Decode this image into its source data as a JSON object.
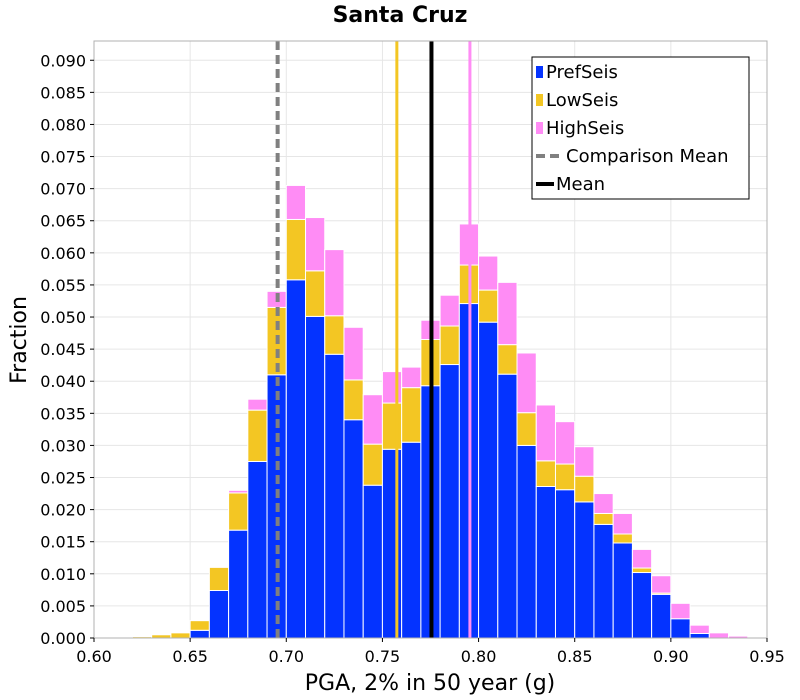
{
  "chart_data": {
    "type": "bar",
    "title": "Santa Cruz",
    "xlabel": "PGA, 2% in 50 year (g)",
    "ylabel": "Fraction",
    "xlim": [
      0.6,
      0.95
    ],
    "ylim": [
      0.0,
      0.093
    ],
    "xticks": [
      "0.60",
      "0.65",
      "0.70",
      "0.75",
      "0.80",
      "0.85",
      "0.90",
      "0.95"
    ],
    "xtick_values": [
      0.6,
      0.65,
      0.7,
      0.75,
      0.8,
      0.85,
      0.9,
      0.95
    ],
    "yticks": [
      "0.000",
      "0.005",
      "0.010",
      "0.015",
      "0.020",
      "0.025",
      "0.030",
      "0.035",
      "0.040",
      "0.045",
      "0.050",
      "0.055",
      "0.060",
      "0.065",
      "0.070",
      "0.075",
      "0.080",
      "0.085",
      "0.090"
    ],
    "ytick_values": [
      0.0,
      0.005,
      0.01,
      0.015,
      0.02,
      0.025,
      0.03,
      0.035,
      0.04,
      0.045,
      0.05,
      0.055,
      0.06,
      0.065,
      0.07,
      0.075,
      0.08,
      0.085,
      0.09
    ],
    "stacked": true,
    "bin_width": 0.01,
    "bin_starts": [
      0.6,
      0.61,
      0.62,
      0.63,
      0.64,
      0.65,
      0.66,
      0.67,
      0.68,
      0.69,
      0.7,
      0.71,
      0.72,
      0.73,
      0.74,
      0.75,
      0.76,
      0.77,
      0.78,
      0.79,
      0.8,
      0.81,
      0.82,
      0.83,
      0.84,
      0.85,
      0.86,
      0.87,
      0.88,
      0.89,
      0.9,
      0.91,
      0.92,
      0.93
    ],
    "series": [
      {
        "name": "PrefSeis",
        "color": "#0433ff",
        "values": [
          0.0,
          0.0,
          0.0,
          0.0,
          0.0,
          0.0012,
          0.0074,
          0.0168,
          0.0275,
          0.041,
          0.0558,
          0.0501,
          0.0442,
          0.034,
          0.0238,
          0.0294,
          0.0305,
          0.0393,
          0.0426,
          0.0521,
          0.0492,
          0.0411,
          0.03,
          0.0236,
          0.0231,
          0.0212,
          0.0177,
          0.0148,
          0.0102,
          0.0068,
          0.003,
          0.0007,
          0.0,
          0.0
        ]
      },
      {
        "name": "LowSeis",
        "color": "#f3c623",
        "values": [
          0.0,
          0.0,
          0.0002,
          0.0005,
          0.0008,
          0.0015,
          0.0036,
          0.0058,
          0.008,
          0.0105,
          0.0094,
          0.0071,
          0.006,
          0.0062,
          0.0064,
          0.0072,
          0.0085,
          0.0072,
          0.006,
          0.006,
          0.005,
          0.0046,
          0.0051,
          0.004,
          0.004,
          0.004,
          0.0017,
          0.0014,
          0.0007,
          0.0002,
          0.0,
          0.0,
          0.0,
          0.0
        ]
      },
      {
        "name": "HighSeis",
        "color": "#ff8cf5",
        "values": [
          0.0,
          0.0,
          0.0,
          0.0,
          0.0,
          0.0,
          0.0,
          0.0004,
          0.0017,
          0.0025,
          0.0053,
          0.0083,
          0.0103,
          0.0082,
          0.0077,
          0.0049,
          0.0032,
          0.003,
          0.0048,
          0.0064,
          0.0053,
          0.0097,
          0.0093,
          0.0087,
          0.0066,
          0.0046,
          0.0031,
          0.0032,
          0.0029,
          0.0027,
          0.0024,
          0.0013,
          0.0008,
          0.0003
        ]
      }
    ],
    "reference_lines": [
      {
        "name": "Comparison Mean",
        "x": 0.6955,
        "color": "#808080",
        "style": "dashed"
      },
      {
        "name": "Mean",
        "x": 0.7755,
        "color": "#000000",
        "style": "solid"
      },
      {
        "name": "LowSeis mean",
        "x": 0.7575,
        "color": "#f3c623",
        "style": "solid"
      },
      {
        "name": "HighSeis mean",
        "x": 0.7955,
        "color": "#ff8cf5",
        "style": "solid"
      }
    ],
    "legend": {
      "position": "top-right",
      "entries": [
        "PrefSeis",
        "LowSeis",
        "HighSeis",
        "Comparison Mean",
        "Mean"
      ]
    },
    "grid": true
  }
}
